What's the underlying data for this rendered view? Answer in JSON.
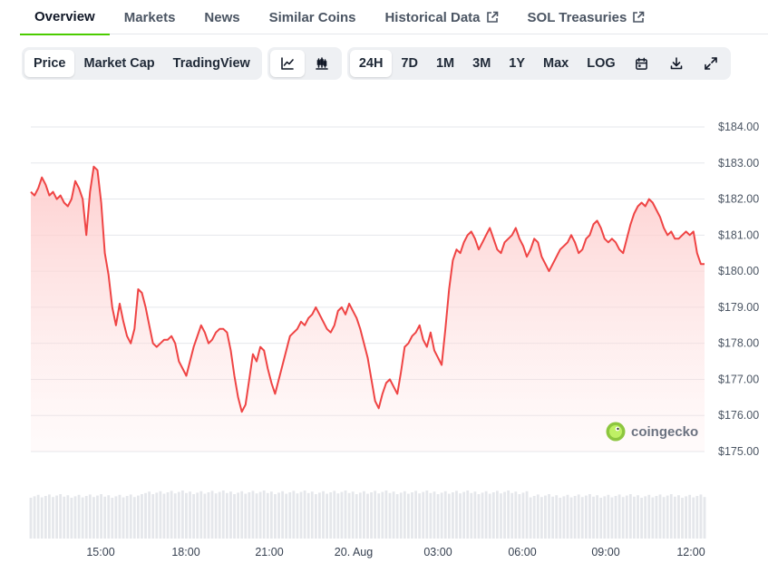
{
  "tabs": [
    {
      "label": "Overview",
      "active": true
    },
    {
      "label": "Markets"
    },
    {
      "label": "News"
    },
    {
      "label": "Similar Coins"
    },
    {
      "label": "Historical Data",
      "external": true
    },
    {
      "label": "SOL Treasuries",
      "external": true
    }
  ],
  "toolbar": {
    "views": [
      "Price",
      "Market Cap",
      "TradingView"
    ],
    "active_view": "Price",
    "chart_types": [
      {
        "icon": "line-chart-icon",
        "active": true
      },
      {
        "icon": "candlestick-chart-icon"
      }
    ],
    "ranges": [
      "24H",
      "7D",
      "1M",
      "3M",
      "1Y",
      "Max",
      "LOG"
    ],
    "active_range": "24H",
    "actions": [
      "calendar-icon",
      "download-icon",
      "fullscreen-icon"
    ]
  },
  "watermark": {
    "text": "coingecko"
  },
  "colors": {
    "line": "#ef4444",
    "fill_top": "#fecaca",
    "grid": "#e5e7eb",
    "volume": "#e5e7eb",
    "accent": "#4bcc00"
  },
  "chart_data": {
    "type": "area",
    "series": [
      {
        "values": [
          182.2,
          182.1,
          182.3,
          182.6,
          182.4,
          182.1,
          182.2,
          182.0,
          182.1,
          181.9,
          181.8,
          182.0,
          182.5,
          182.3,
          182.0,
          181.0,
          182.2,
          182.9,
          182.8,
          181.9,
          180.5,
          179.9,
          179.0,
          178.5,
          179.1,
          178.6,
          178.2,
          178.0,
          178.4,
          179.5,
          179.4,
          179.0,
          178.5,
          178.0,
          177.9,
          178.0,
          178.1,
          178.1,
          178.2,
          178.0,
          177.5,
          177.3,
          177.1,
          177.5,
          177.9,
          178.2,
          178.5,
          178.3,
          178.0,
          178.1,
          178.3,
          178.4,
          178.4,
          178.3,
          177.8,
          177.1,
          176.5,
          176.1,
          176.3,
          177.0,
          177.7,
          177.5,
          177.9,
          177.8,
          177.3,
          176.9,
          176.6,
          177.0,
          177.4,
          177.8,
          178.2,
          178.3,
          178.4,
          178.6,
          178.5,
          178.7,
          178.8,
          179.0,
          178.8,
          178.6,
          178.4,
          178.3,
          178.5,
          178.9,
          179.0,
          178.8,
          179.1,
          178.9,
          178.7,
          178.4,
          178.0,
          177.6,
          177.0,
          176.4,
          176.2,
          176.6,
          176.9,
          177.0,
          176.8,
          176.6,
          177.2,
          177.9,
          178.0,
          178.2,
          178.3,
          178.5,
          178.1,
          177.9,
          178.3,
          177.8,
          177.6,
          177.4,
          178.4,
          179.5,
          180.3,
          180.6,
          180.5,
          180.8,
          181.0,
          181.1,
          180.9,
          180.6,
          180.8,
          181.0,
          181.2,
          180.9,
          180.6,
          180.5,
          180.8,
          180.9,
          181.0,
          181.2,
          180.9,
          180.7,
          180.4,
          180.6,
          180.9,
          180.8,
          180.4,
          180.2,
          180.0,
          180.2,
          180.4,
          180.6,
          180.7,
          180.8,
          181.0,
          180.8,
          180.5,
          180.6,
          180.9,
          181.0,
          181.3,
          181.4,
          181.2,
          180.9,
          180.8,
          180.9,
          180.8,
          180.6,
          180.5,
          180.9,
          181.3,
          181.6,
          181.8,
          181.9,
          181.8,
          182.0,
          181.9,
          181.7,
          181.5,
          181.2,
          181.0,
          181.1,
          180.9,
          180.9,
          181.0,
          181.1,
          181.0,
          181.1,
          180.5,
          180.2,
          180.2
        ]
      }
    ],
    "x_labels": [
      "15:00",
      "18:00",
      "21:00",
      "20. Aug",
      "03:00",
      "06:00",
      "09:00",
      "12:00"
    ],
    "y_ticks": [
      "$184.00",
      "$183.00",
      "$182.00",
      "$181.00",
      "$180.00",
      "$179.00",
      "$178.00",
      "$177.00",
      "$176.00",
      "$175.00"
    ],
    "ylim": [
      175,
      184
    ],
    "grid": true,
    "volume_bars": true
  }
}
